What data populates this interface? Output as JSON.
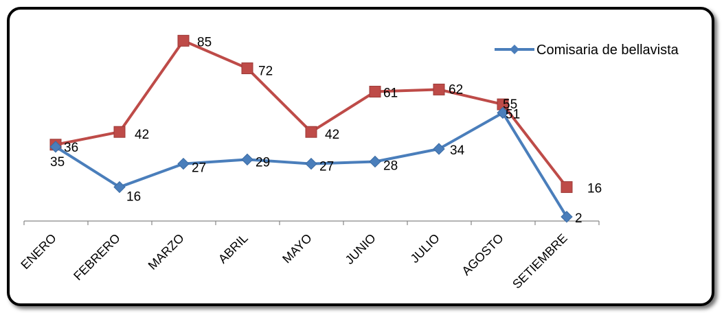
{
  "chart_data": {
    "type": "line",
    "categories": [
      "ENERO",
      "FEBRERO",
      "MARZO",
      "ABRIL",
      "MAYO",
      "JUNIO",
      "JULIO",
      "AGOSTO",
      "SETIEMBRE"
    ],
    "series": [
      {
        "name": "Comisaria de bellavista",
        "values": [
          35,
          16,
          27,
          29,
          27,
          28,
          34,
          51,
          2
        ],
        "color": "#4a7ebb",
        "marker": "diamond"
      },
      {
        "name": "",
        "values": [
          36,
          42,
          85,
          72,
          42,
          61,
          62,
          55,
          16
        ],
        "color": "#be4b48",
        "marker": "square"
      }
    ],
    "ylim": [
      0,
      100
    ],
    "grid": false,
    "legend": "top-right",
    "title": "",
    "xlabel": "",
    "ylabel": ""
  }
}
